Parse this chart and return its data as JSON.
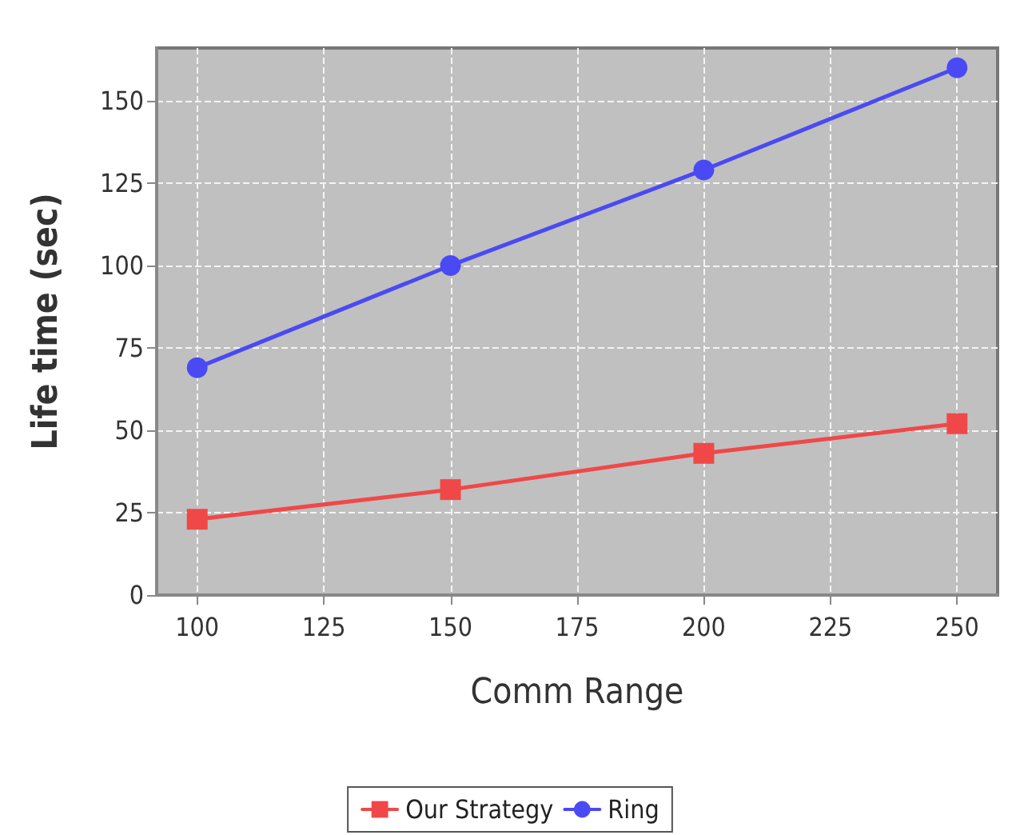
{
  "chart_data": {
    "type": "line",
    "xlabel": "Comm Range",
    "ylabel": "Life time (sec)",
    "x": [
      100,
      150,
      200,
      250
    ],
    "series": [
      {
        "name": "Our Strategy",
        "color": "#f04848",
        "marker": "square",
        "values": [
          23,
          32,
          43,
          52
        ]
      },
      {
        "name": "Ring",
        "color": "#4a4af4",
        "marker": "circle",
        "values": [
          69,
          100,
          129,
          160
        ]
      }
    ],
    "xlim": [
      92,
      258
    ],
    "xticks": [
      100,
      125,
      150,
      175,
      200,
      225,
      250
    ],
    "ylim": [
      0,
      166
    ],
    "yticks": [
      0,
      25,
      50,
      75,
      100,
      125,
      150
    ],
    "grid": true,
    "legend": "bottom",
    "line_style": "solid"
  }
}
